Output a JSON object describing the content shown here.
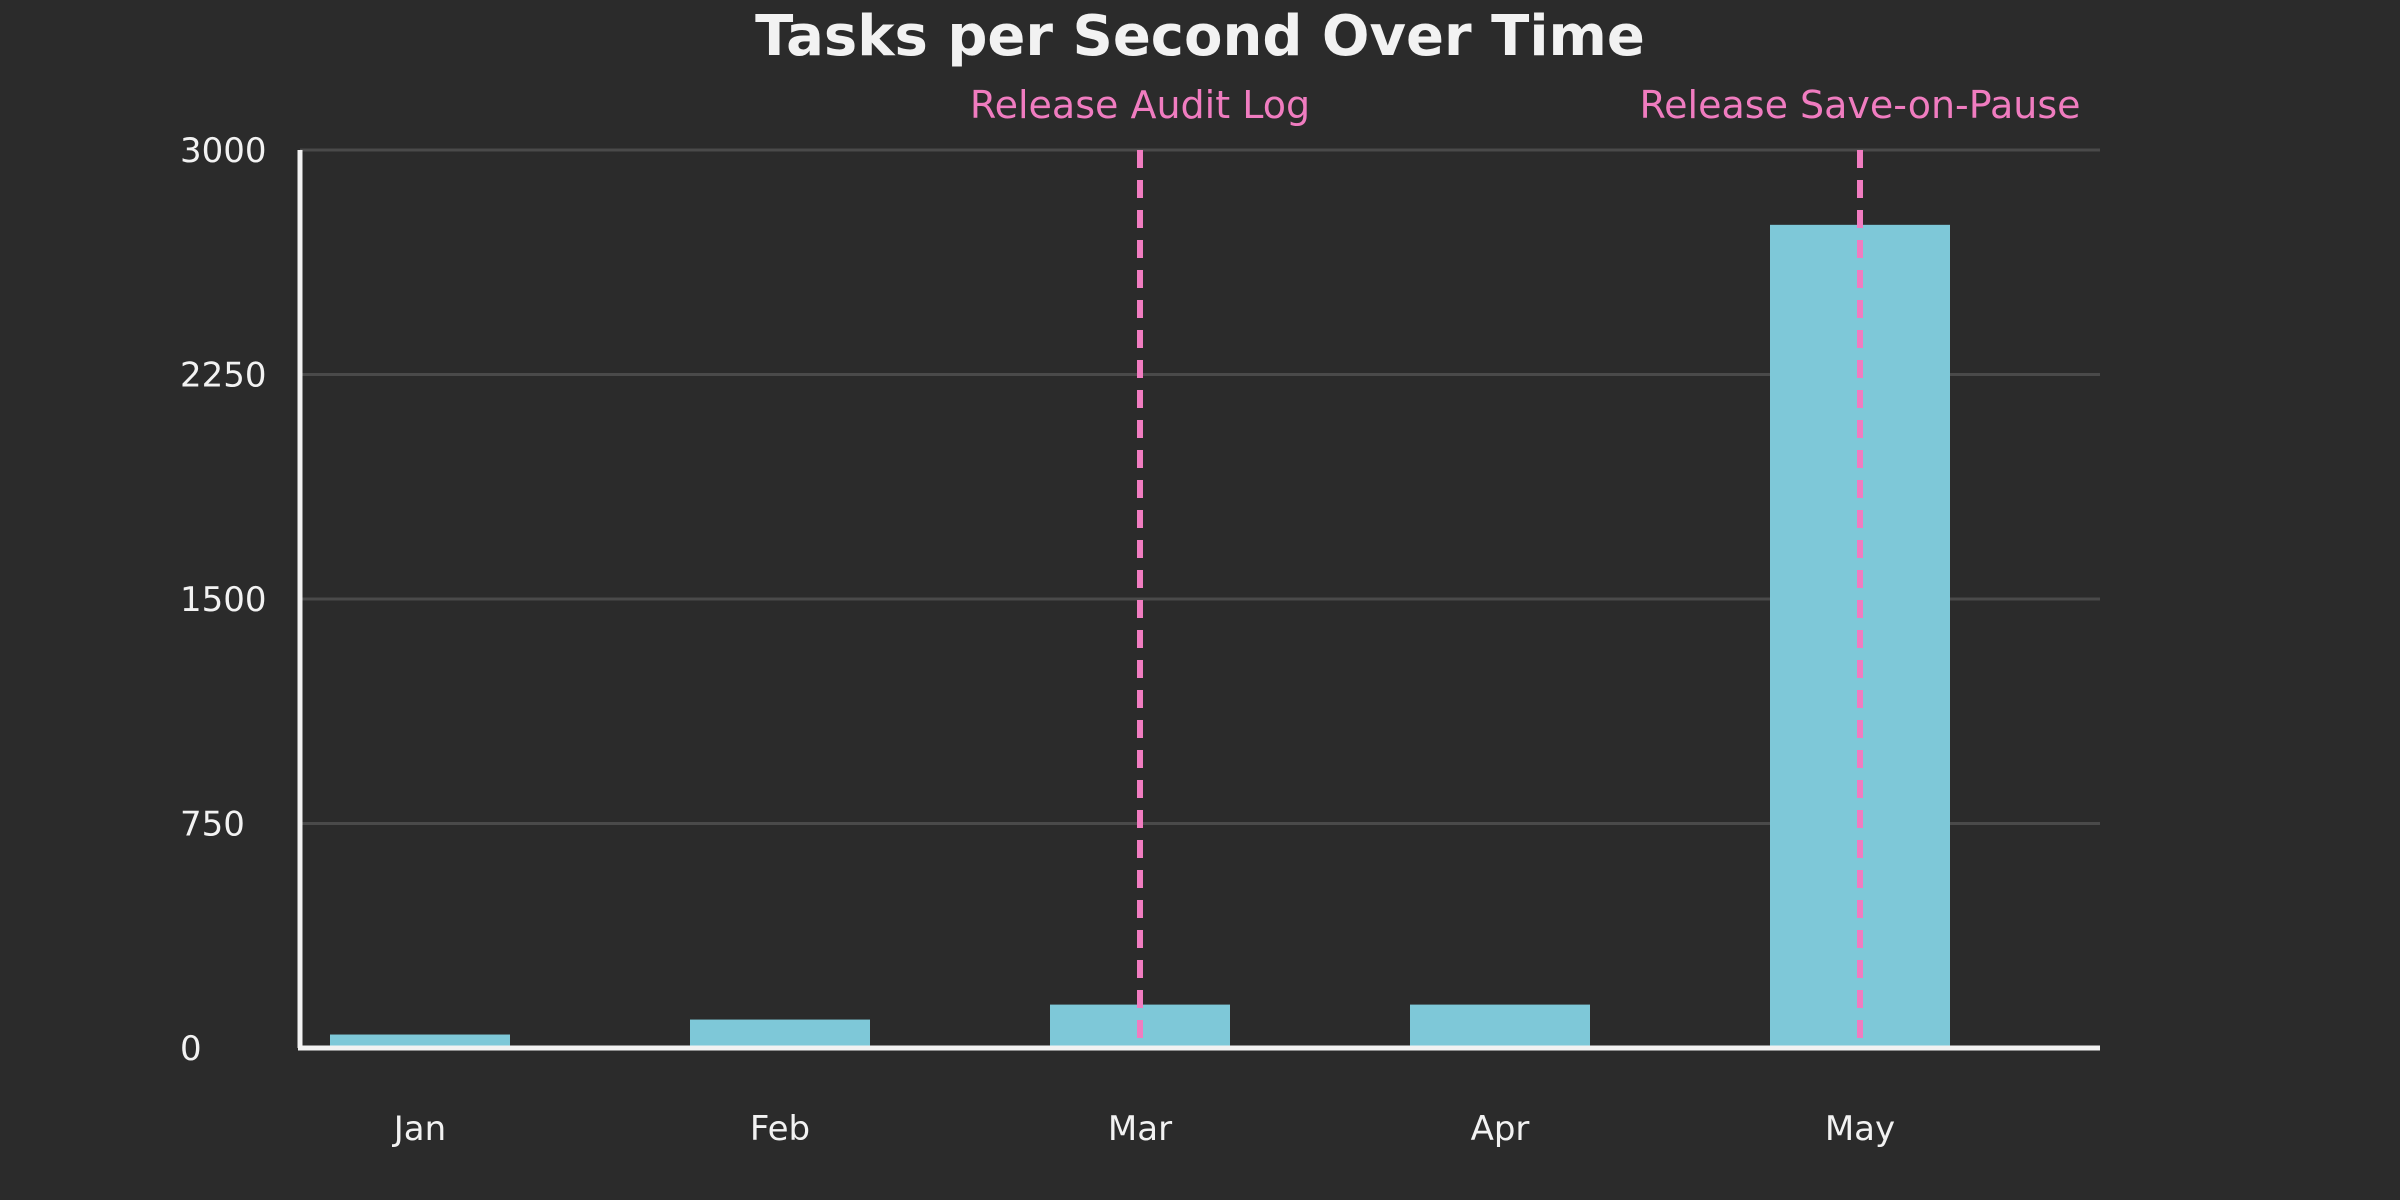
{
  "chart_data": {
    "type": "bar",
    "title": "Tasks per Second Over Time",
    "xlabel": "",
    "ylabel": "",
    "categories": [
      "Jan",
      "Feb",
      "Mar",
      "Apr",
      "May"
    ],
    "values": [
      45,
      95,
      145,
      145,
      2750
    ],
    "ylim": [
      0,
      3000
    ],
    "yticks": [
      0,
      750,
      1500,
      2250,
      3000
    ],
    "grid": true,
    "annotations": [
      {
        "category": "Mar",
        "label": "Release Audit Log"
      },
      {
        "category": "May",
        "label": "Release Save-on-Pause"
      }
    ],
    "colors": {
      "background": "#2b2b2b",
      "bar": "#7ec8d8",
      "grid": "#4a4a4a",
      "axis": "#f2f2f2",
      "text": "#f2f2f2",
      "annotation": "#f07cc0"
    }
  }
}
